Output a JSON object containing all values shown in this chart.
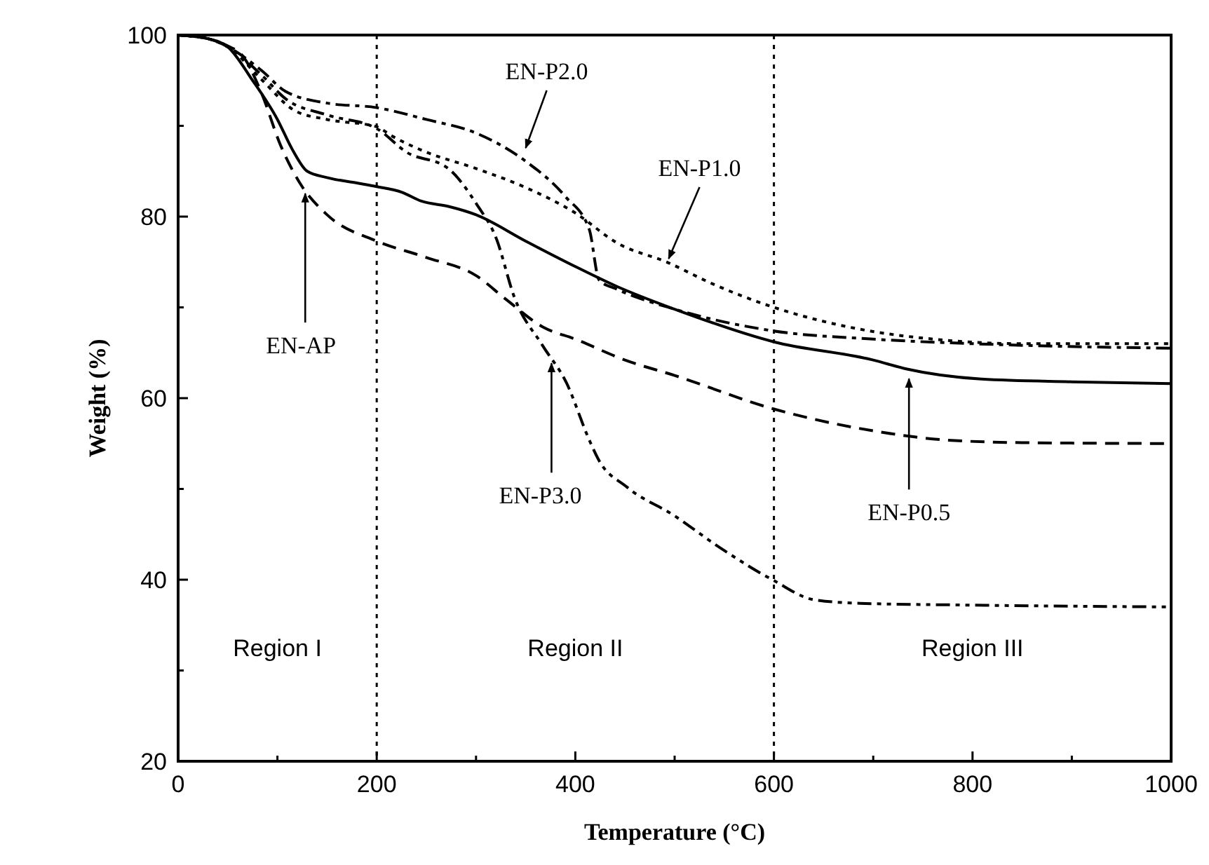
{
  "chart_data": {
    "type": "line",
    "xlabel": "Temperature (°C)",
    "ylabel": "Weight (%)",
    "xlim": [
      0,
      1000
    ],
    "ylim": [
      20,
      100
    ],
    "xticks": [
      0,
      {
        "value": 100,
        "label": null
      },
      200,
      {
        "value": 300,
        "label": null
      },
      400,
      {
        "value": 500,
        "label": null
      },
      600,
      {
        "value": 700,
        "label": null
      },
      800,
      {
        "value": 900,
        "label": null
      },
      1000
    ],
    "yticks": [
      20,
      {
        "value": 30,
        "label": null
      },
      40,
      {
        "value": 50,
        "label": null
      },
      60,
      {
        "value": 70,
        "label": null
      },
      80,
      {
        "value": 90,
        "label": null
      },
      100
    ],
    "grid": false,
    "marker": "none",
    "series": [
      {
        "color": "#000000",
        "line_style": "dashed",
        "x": [
          0,
          30,
          50,
          65,
          84,
          103,
          122,
          150,
          200,
          250,
          300,
          330,
          368,
          400,
          450,
          500,
          600,
          700,
          772,
          850,
          1000
        ],
        "values": [
          100,
          99.6,
          98.8,
          97.7,
          93.6,
          87.9,
          83.8,
          80.2,
          77.3,
          75.5,
          73.5,
          70.9,
          67.8,
          66.5,
          64.2,
          62.5,
          58.8,
          56.4,
          55.4,
          55.1,
          55.0
        ]
      },
      {
        "color": "#000000",
        "line_style": "solid",
        "x": [
          0,
          30,
          50,
          75,
          100,
          115,
          130,
          150,
          180,
          200,
          225,
          245,
          273,
          300,
          350,
          400,
          442,
          500,
          600,
          700,
          734,
          809,
          900,
          1000
        ],
        "values": [
          100,
          99.6,
          98.7,
          95,
          90.7,
          87.4,
          85,
          84.3,
          83.7,
          83.3,
          82.7,
          81.7,
          81.1,
          80.2,
          77.3,
          74.5,
          72.3,
          69.8,
          66.2,
          64.2,
          63.2,
          62.1,
          61.8,
          61.6
        ]
      },
      {
        "color": "#000000",
        "line_style": "dotted",
        "x": [
          0,
          30,
          50,
          84,
          117,
          150,
          200,
          215,
          250,
          300,
          350,
          400,
          442,
          494,
          536,
          600,
          677,
          771,
          850,
          1000
        ],
        "values": [
          100,
          99.6,
          98.7,
          95.1,
          91.7,
          90.7,
          89.9,
          88.9,
          87.1,
          85.3,
          83.2,
          80.4,
          77.1,
          74.9,
          72.7,
          70.0,
          67.8,
          66.4,
          66.0,
          66.0
        ]
      },
      {
        "color": "#000000",
        "line_style": "dashdot",
        "x": [
          0,
          30,
          50,
          84,
          108,
          150,
          200,
          250,
          300,
          350,
          390,
          414,
          424,
          442,
          500,
          600,
          700,
          800,
          1000
        ],
        "values": [
          100,
          99.6,
          98.7,
          96.1,
          93.8,
          92.5,
          92.0,
          90.7,
          89.2,
          86.1,
          82.2,
          78.6,
          73.0,
          72.0,
          69.8,
          67.4,
          66.5,
          66.0,
          65.5
        ]
      },
      {
        "color": "#000000",
        "line_style": "dashdotdot",
        "x": [
          0,
          30,
          50,
          84,
          108,
          150,
          200,
          230,
          272,
          301,
          320,
          339,
          367,
          391,
          414,
          423,
          452,
          499,
          546,
          600,
          640,
          687,
          800,
          1000
        ],
        "values": [
          100,
          99.6,
          98.7,
          95.6,
          93,
          91.2,
          89.7,
          87.1,
          85.3,
          81.3,
          77.7,
          71.0,
          65.8,
          61.7,
          55.4,
          53.3,
          50.2,
          47.1,
          43.5,
          39.9,
          37.8,
          37.4,
          37.2,
          37.0
        ]
      }
    ],
    "ref_lines": [
      {
        "axis": "x",
        "value": 200,
        "line_style": "dotted"
      },
      {
        "axis": "x",
        "value": 600,
        "line_style": "dotted"
      }
    ],
    "annotations": [
      "Region I",
      "Region II",
      "Region III",
      {
        "text": "EN-AP",
        "x": 128,
        "y": 83.0
      },
      {
        "text": "EN-P2.0",
        "x": 350,
        "y": 87.1
      },
      {
        "text": "EN-P1.0",
        "x": 494,
        "y": 74.9
      },
      {
        "text": "EN-P3.0",
        "x": 376,
        "y": 64.3
      },
      {
        "text": "EN-P0.5",
        "x": 736,
        "y": 62.6
      }
    ]
  }
}
